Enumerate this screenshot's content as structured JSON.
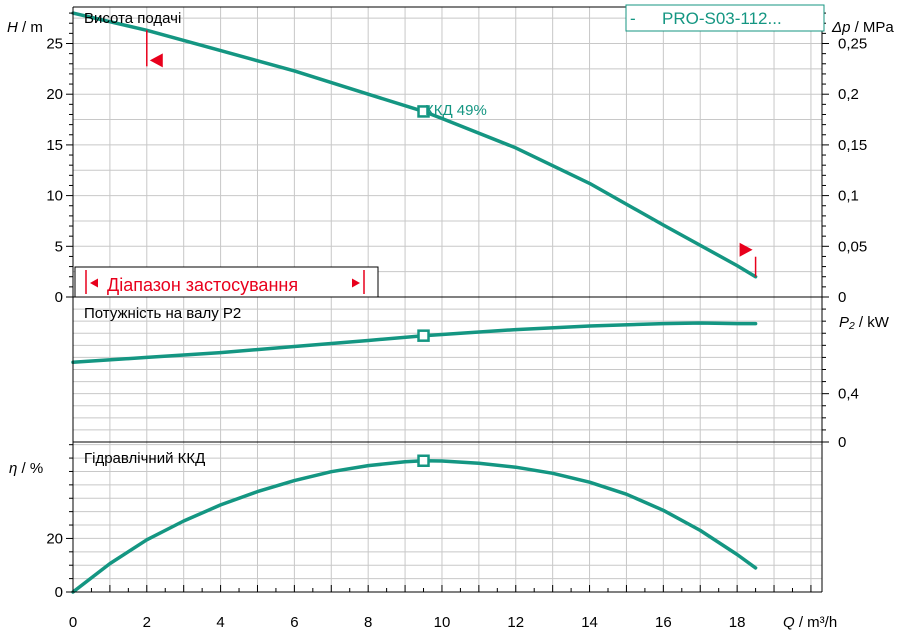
{
  "chart_data": [
    {
      "type": "line",
      "panel": "head",
      "title": "Висота подачі",
      "ylabel_sym": "H",
      "ylabel_unit": " / m",
      "y2label_sym": "Δp",
      "y2label_unit": " / MPa",
      "xlim": [
        0,
        20.3
      ],
      "ylim": [
        0,
        28.6
      ],
      "y2lim": [
        0,
        0.286
      ],
      "yticks": [
        0,
        5,
        10,
        15,
        20,
        25
      ],
      "ytick_labels": [
        "0",
        "5",
        "10",
        "15",
        "20",
        "25"
      ],
      "y2ticks": [
        0,
        0.05,
        0.1,
        0.15,
        0.2,
        0.25
      ],
      "y2tick_labels": [
        "0",
        "0,05",
        "0,1",
        "0,15",
        "0,2",
        "0,25"
      ],
      "series": [
        {
          "name": "PRO-S03-112...",
          "color": "#149682",
          "x": [
            0,
            2,
            4,
            6,
            8,
            9.5,
            10,
            12,
            14,
            16,
            18,
            18.5
          ],
          "y": [
            28,
            26.3,
            24.3,
            22.3,
            20,
            18.3,
            17.6,
            14.7,
            11.2,
            7.1,
            3.1,
            2
          ]
        }
      ],
      "duty_point": {
        "x": 9.5,
        "y": 18.3,
        "label": "ККД  49%"
      },
      "range": {
        "x_start": 2,
        "x_end": 18.3,
        "label": "Діапазон застосування"
      }
    },
    {
      "type": "line",
      "panel": "power",
      "title": "Потужність на валу P2",
      "ylabel_sym": "P₂",
      "ylabel_unit": " / kW",
      "xlim": [
        0,
        20.3
      ],
      "ylim": [
        0,
        1.2
      ],
      "yticks": [
        0,
        0.4
      ],
      "ytick_labels": [
        "0",
        "0,4"
      ],
      "series": [
        {
          "name": "PRO-S03-112...",
          "color": "#149682",
          "x": [
            0,
            2,
            4,
            6,
            8,
            9.5,
            10,
            12,
            14,
            16,
            17,
            18,
            18.5
          ],
          "y": [
            0.66,
            0.7,
            0.74,
            0.79,
            0.84,
            0.88,
            0.89,
            0.93,
            0.96,
            0.98,
            0.985,
            0.98,
            0.98
          ]
        }
      ],
      "duty_point": {
        "x": 9.5,
        "y": 0.88
      }
    },
    {
      "type": "line",
      "panel": "efficiency",
      "title": "Гідравлічний ККД",
      "ylabel_sym": "η",
      "ylabel_unit": " / %",
      "xlabel_sym": "Q",
      "xlabel_unit": " / m³/h",
      "xlim": [
        0,
        20.3
      ],
      "ylim": [
        0,
        56
      ],
      "yticks": [
        0,
        20
      ],
      "ytick_labels": [
        "0",
        "20"
      ],
      "xticks": [
        0,
        2,
        4,
        6,
        8,
        10,
        12,
        14,
        16,
        18
      ],
      "xtick_labels": [
        "0",
        "2",
        "4",
        "6",
        "8",
        "10",
        "12",
        "14",
        "16",
        "18"
      ],
      "series": [
        {
          "name": "PRO-S03-112...",
          "color": "#149682",
          "x": [
            0,
            1,
            2,
            3,
            4,
            5,
            6,
            7,
            8,
            9,
            9.5,
            10,
            11,
            12,
            13,
            14,
            15,
            16,
            17,
            18,
            18.5
          ],
          "y": [
            0,
            10.6,
            19.5,
            26.5,
            32.5,
            37.5,
            41.6,
            44.9,
            47.2,
            48.6,
            49,
            48.9,
            48.1,
            46.6,
            44.3,
            41,
            36.5,
            30.5,
            23,
            14,
            9
          ]
        }
      ],
      "duty_point": {
        "x": 9.5,
        "y": 49
      }
    }
  ],
  "legend": {
    "dash": "-",
    "label": "PRO-S03-112..."
  },
  "colors": {
    "curve": "#149682",
    "range_marker": "#e8001c",
    "grid": "#c8c8c8",
    "axis": "#000000"
  }
}
